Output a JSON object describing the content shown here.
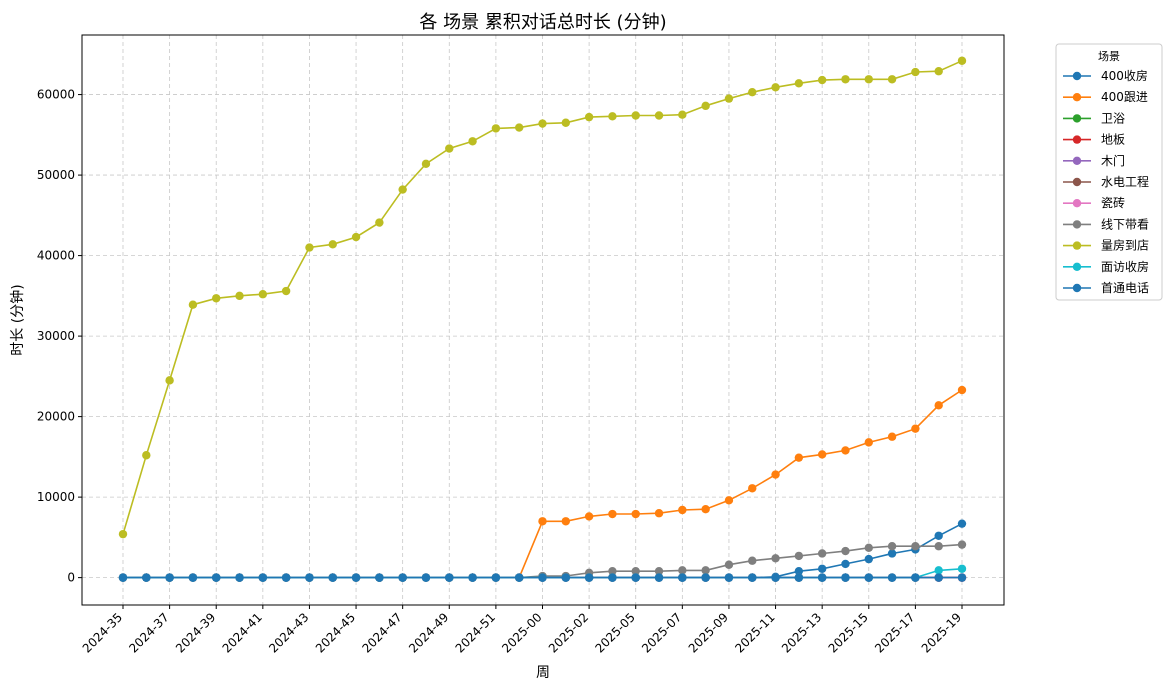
{
  "chart_data": {
    "type": "line",
    "title": "各 场景 累积对话总时长 (分钟)",
    "xlabel": "周",
    "ylabel": "时长 (分钟)",
    "ylim": [
      -3400,
      67400
    ],
    "yticks": [
      0,
      10000,
      20000,
      30000,
      40000,
      50000,
      60000
    ],
    "grid": true,
    "legend_title": "场景",
    "legend_position": "outside-top-right",
    "x": [
      "2024-35",
      "2024-36",
      "2024-37",
      "2024-38",
      "2024-39",
      "2024-40",
      "2024-41",
      "2024-42",
      "2024-43",
      "2024-44",
      "2024-45",
      "2024-46",
      "2024-47",
      "2024-48",
      "2024-49",
      "2024-50",
      "2024-51",
      "2024-52",
      "2025-00",
      "2025-01",
      "2025-02",
      "2025-03",
      "2025-05",
      "2025-06",
      "2025-07",
      "2025-08",
      "2025-09",
      "2025-10",
      "2025-11",
      "2025-12",
      "2025-13",
      "2025-14",
      "2025-15",
      "2025-16",
      "2025-17",
      "2025-18",
      "2025-19"
    ],
    "xtick_labels": [
      "2024-35",
      "2024-37",
      "2024-39",
      "2024-41",
      "2024-43",
      "2024-45",
      "2024-47",
      "2024-49",
      "2024-51",
      "2025-00",
      "2025-02",
      "2025-05",
      "2025-07",
      "2025-09",
      "2025-11",
      "2025-13",
      "2025-15",
      "2025-17",
      "2025-19"
    ],
    "series": [
      {
        "name": "400收房",
        "color": "#1f77b4",
        "values": [
          0,
          0,
          0,
          0,
          0,
          0,
          0,
          0,
          0,
          0,
          0,
          0,
          0,
          0,
          0,
          0,
          0,
          0,
          0,
          0,
          0,
          0,
          0,
          0,
          0,
          0,
          0,
          0,
          100,
          800,
          1100,
          1700,
          2300,
          3000,
          3500,
          5200,
          6700
        ]
      },
      {
        "name": "400跟进",
        "color": "#ff7f0e",
        "values": [
          0,
          0,
          0,
          0,
          0,
          0,
          0,
          0,
          0,
          0,
          0,
          0,
          0,
          0,
          0,
          0,
          0,
          0,
          7000,
          7000,
          7600,
          7900,
          7900,
          8000,
          8400,
          8500,
          9600,
          11100,
          12800,
          14900,
          15300,
          15800,
          16800,
          17500,
          18500,
          21400,
          23300
        ]
      },
      {
        "name": "卫浴",
        "color": "#2ca02c",
        "values": [
          0,
          0,
          0,
          0,
          0,
          0,
          0,
          0,
          0,
          0,
          0,
          0,
          0,
          0,
          0,
          0,
          0,
          0,
          0,
          0,
          0,
          0,
          0,
          0,
          0,
          0,
          0,
          0,
          0,
          0,
          0,
          0,
          0,
          0,
          0,
          0,
          0
        ]
      },
      {
        "name": "地板",
        "color": "#d62728",
        "values": [
          0,
          0,
          0,
          0,
          0,
          0,
          0,
          0,
          0,
          0,
          0,
          0,
          0,
          0,
          0,
          0,
          0,
          0,
          0,
          0,
          0,
          0,
          0,
          0,
          0,
          0,
          0,
          0,
          0,
          0,
          0,
          0,
          0,
          0,
          0,
          0,
          0
        ]
      },
      {
        "name": "木门",
        "color": "#9467bd",
        "values": [
          0,
          0,
          0,
          0,
          0,
          0,
          0,
          0,
          0,
          0,
          0,
          0,
          0,
          0,
          0,
          0,
          0,
          0,
          0,
          0,
          0,
          0,
          0,
          0,
          0,
          0,
          0,
          0,
          0,
          0,
          0,
          0,
          0,
          0,
          0,
          0,
          0
        ]
      },
      {
        "name": "水电工程",
        "color": "#8c564b",
        "values": [
          0,
          0,
          0,
          0,
          0,
          0,
          0,
          0,
          0,
          0,
          0,
          0,
          0,
          0,
          0,
          0,
          0,
          0,
          0,
          0,
          0,
          0,
          0,
          0,
          0,
          0,
          0,
          0,
          0,
          0,
          0,
          0,
          0,
          0,
          0,
          0,
          0
        ]
      },
      {
        "name": "瓷砖",
        "color": "#e377c2",
        "values": [
          0,
          0,
          0,
          0,
          0,
          0,
          0,
          0,
          0,
          0,
          0,
          0,
          0,
          0,
          0,
          0,
          0,
          0,
          0,
          0,
          0,
          0,
          0,
          0,
          0,
          0,
          0,
          0,
          0,
          0,
          0,
          0,
          0,
          0,
          0,
          0,
          0
        ]
      },
      {
        "name": "线下带看",
        "color": "#7f7f7f",
        "values": [
          0,
          0,
          0,
          0,
          0,
          0,
          0,
          0,
          0,
          0,
          0,
          0,
          0,
          0,
          0,
          0,
          0,
          0,
          200,
          200,
          600,
          800,
          800,
          800,
          900,
          900,
          1600,
          2100,
          2400,
          2700,
          3000,
          3300,
          3700,
          3900,
          3900,
          3900,
          4100
        ]
      },
      {
        "name": "量房到店",
        "color": "#bcbd22",
        "values": [
          5400,
          15200,
          24500,
          33900,
          34700,
          35000,
          35200,
          35600,
          41000,
          41400,
          42300,
          44100,
          48200,
          51400,
          53300,
          54200,
          55800,
          55900,
          56400,
          56500,
          57200,
          57300,
          57400,
          57400,
          57500,
          58600,
          59500,
          60300,
          60900,
          61400,
          61800,
          61900,
          61900,
          61900,
          62800,
          62900,
          64200
        ]
      },
      {
        "name": "面访收房",
        "color": "#17becf",
        "values": [
          0,
          0,
          0,
          0,
          0,
          0,
          0,
          0,
          0,
          0,
          0,
          0,
          0,
          0,
          0,
          0,
          0,
          0,
          0,
          0,
          0,
          0,
          0,
          0,
          0,
          0,
          0,
          0,
          0,
          0,
          0,
          0,
          0,
          0,
          0,
          900,
          1100
        ]
      },
      {
        "name": "首通电话",
        "color": "#1f77b4",
        "values": [
          0,
          0,
          0,
          0,
          0,
          0,
          0,
          0,
          0,
          0,
          0,
          0,
          0,
          0,
          0,
          0,
          0,
          0,
          0,
          0,
          0,
          0,
          0,
          0,
          0,
          0,
          0,
          0,
          0,
          0,
          0,
          0,
          0,
          0,
          0,
          0,
          0
        ]
      }
    ]
  }
}
